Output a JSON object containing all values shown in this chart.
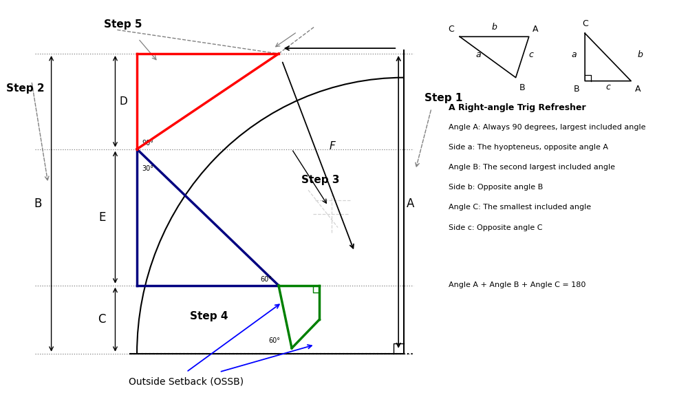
{
  "bg_color": "#ffffff",
  "fig_width": 10.0,
  "fig_height": 5.71,
  "annotation_lines": [
    "A Right-angle Trig Refresher",
    "Angle A: Always 90 degrees, largest included angle",
    "Side a: The hyopteneus, opposite angle A",
    "Angle B: The second largest included angle",
    "Side b: Opposite angle B",
    "Angle C: The smallest included angle",
    "Side c: Opposite angle C",
    "",
    "Angle A + Angle B + Angle C = 180"
  ]
}
